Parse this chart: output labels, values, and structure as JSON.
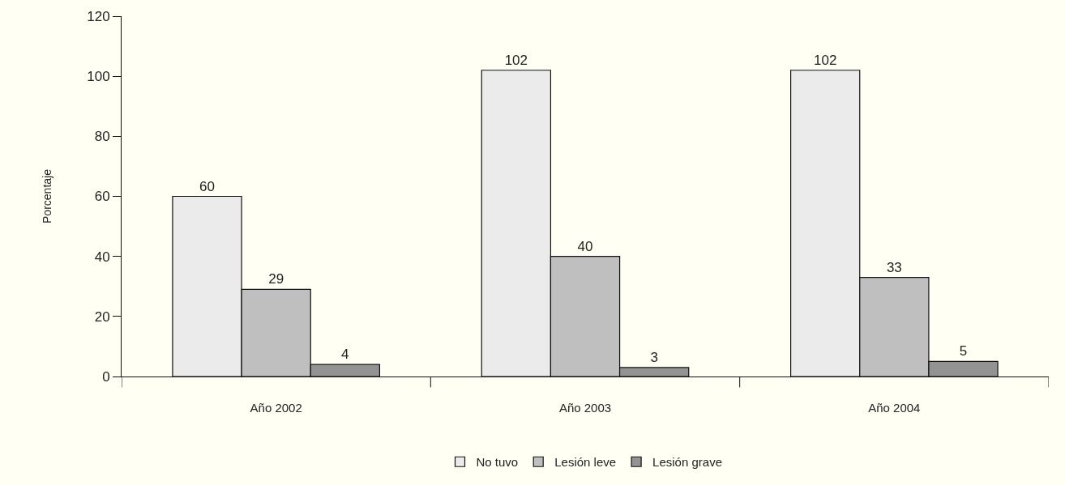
{
  "chart_data": {
    "type": "bar",
    "ylabel": "Porcentaje",
    "categories": [
      "Año 2002",
      "Año 2003",
      "Año 2004"
    ],
    "series": [
      {
        "name": "No tuvo",
        "color": "#ebebeb",
        "values": [
          60,
          102,
          102
        ]
      },
      {
        "name": "Lesión leve",
        "color": "#bfbfbf",
        "values": [
          29,
          40,
          33
        ]
      },
      {
        "name": "Lesión grave",
        "color": "#939393",
        "values": [
          4,
          3,
          5
        ]
      }
    ],
    "ylim": [
      0,
      120
    ],
    "yticks": [
      0,
      20,
      40,
      60,
      80,
      100,
      120
    ],
    "data_labels": true,
    "grid": false,
    "legend": "bottom"
  }
}
